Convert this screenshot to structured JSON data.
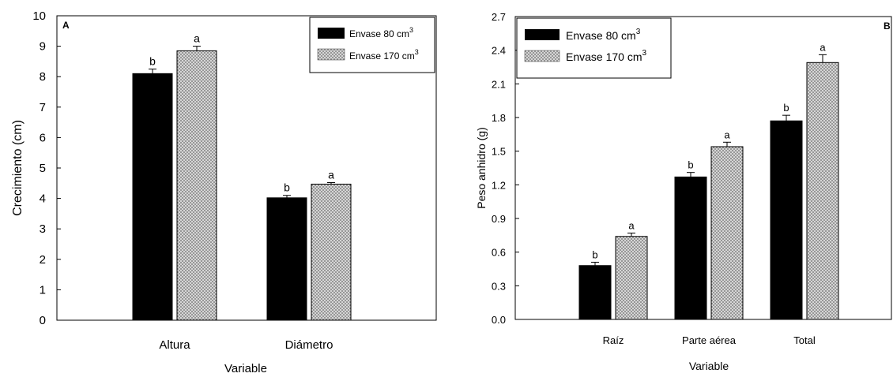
{
  "chart_data": [
    {
      "type": "bar",
      "panel_label": "A",
      "title": "",
      "xlabel": "Variable",
      "ylabel": "Crecimiento (cm)",
      "ylim": [
        0,
        10
      ],
      "yticks": [
        "0",
        "1",
        "2",
        "3",
        "4",
        "5",
        "6",
        "7",
        "8",
        "9",
        "10"
      ],
      "categories": [
        "Altura",
        "Diámetro"
      ],
      "grid": false,
      "legend_position": "top-right",
      "series": [
        {
          "name": "Envase 80 cm",
          "name_sup": "3",
          "fill": "#000000",
          "values": [
            8.1,
            4.02
          ],
          "errors": [
            0.15,
            0.08
          ],
          "letters": [
            "b",
            "b"
          ]
        },
        {
          "name": "Envase 170 cm",
          "name_sup": "3",
          "fill": "#bdbdbd",
          "values": [
            8.85,
            4.47
          ],
          "errors": [
            0.15,
            0.05
          ],
          "letters": [
            "a",
            "a"
          ]
        }
      ]
    },
    {
      "type": "bar",
      "panel_label": "B",
      "title": "",
      "xlabel": "Variable",
      "ylabel": "Peso anhidro (g)",
      "ylim": [
        0,
        2.7
      ],
      "yticks": [
        "0.0",
        "0.3",
        "0.6",
        "0.9",
        "1.2",
        "1.5",
        "1.8",
        "2.1",
        "2.4",
        "2.7"
      ],
      "categories": [
        "Raíz",
        "Parte aérea",
        "Total"
      ],
      "grid": false,
      "legend_position": "top-left",
      "series": [
        {
          "name": "Envase 80 cm",
          "name_sup": "3",
          "fill": "#000000",
          "values": [
            0.48,
            1.27,
            1.77
          ],
          "errors": [
            0.03,
            0.04,
            0.05
          ],
          "letters": [
            "b",
            "b",
            "b"
          ]
        },
        {
          "name": "Envase 170 cm",
          "name_sup": "3",
          "fill": "#bdbdbd",
          "values": [
            0.74,
            1.54,
            2.29
          ],
          "errors": [
            0.03,
            0.04,
            0.07
          ],
          "letters": [
            "a",
            "a",
            "a"
          ]
        }
      ]
    }
  ]
}
